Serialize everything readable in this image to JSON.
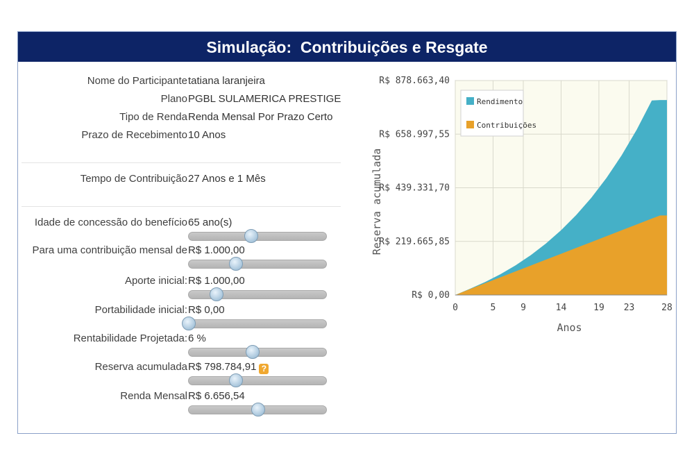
{
  "header": {
    "title": "Simulação:  Contribuições e Resgate"
  },
  "info": [
    {
      "label": "Nome do Participante",
      "value": "tatiana laranjeira"
    },
    {
      "label": "Plano",
      "value": "PGBL SULAMERICA PRESTIGE"
    },
    {
      "label": "Tipo de Renda",
      "value": "Renda Mensal Por Prazo Certo"
    },
    {
      "label": "Prazo de Recebimento",
      "value": "10 Anos"
    }
  ],
  "tempo": {
    "label": "Tempo de Contribuição",
    "value": "27 Anos e 1 Mês"
  },
  "sliders": [
    {
      "label": "Idade de concessão do benefício",
      "value": "65 ano(s)",
      "level": 0.45
    },
    {
      "label": "Para uma contribuição mensal de",
      "value": "R$ 1.000,00",
      "level": 0.34
    },
    {
      "label": "Aporte inicial:",
      "value": "R$ 1.000,00",
      "level": 0.2
    },
    {
      "label": "Portabilidade inicial:",
      "value": "R$ 0,00",
      "level": 0.0
    },
    {
      "label": "Rentabilidade Projetada:",
      "value": "6 %",
      "level": 0.46
    },
    {
      "label": "Reserva acumulada",
      "value": "R$ 798.784,91",
      "level": 0.34,
      "help": "?"
    },
    {
      "label": "Renda Mensal",
      "value": "R$ 6.656,54",
      "level": 0.5
    }
  ],
  "chart_data": {
    "type": "area",
    "xlabel": "Anos",
    "ylabel": "Reserva acumulada",
    "x_ticks": [
      "0",
      "5",
      "9",
      "14",
      "19",
      "23",
      "28"
    ],
    "y_ticks": [
      "R$ 0,00",
      "R$ 219.665,85",
      "R$ 439.331,70",
      "R$ 658.997,55",
      "R$ 878.663,40"
    ],
    "ylim": [
      0,
      878663.4
    ],
    "xlim": [
      0,
      28
    ],
    "grid": true,
    "legend_position": "top-left",
    "x": [
      0,
      2,
      4,
      6,
      8,
      10,
      12,
      14,
      16,
      18,
      20,
      22,
      24,
      26,
      27.1,
      28
    ],
    "series": [
      {
        "name": "Contribuições",
        "color": "#e8a12a",
        "values": [
          0,
          25000,
          49000,
          73000,
          97000,
          121000,
          145000,
          169000,
          193000,
          217000,
          241000,
          265000,
          289000,
          313000,
          326000,
          326000
        ]
      },
      {
        "name": "Rendimento",
        "color": "#45b0c7",
        "values": [
          0,
          26200,
          54100,
          85700,
          122000,
          163500,
          211000,
          265500,
          327600,
          398500,
          479500,
          571800,
          677200,
          797000,
          798784.91,
          798784.91
        ]
      }
    ]
  }
}
